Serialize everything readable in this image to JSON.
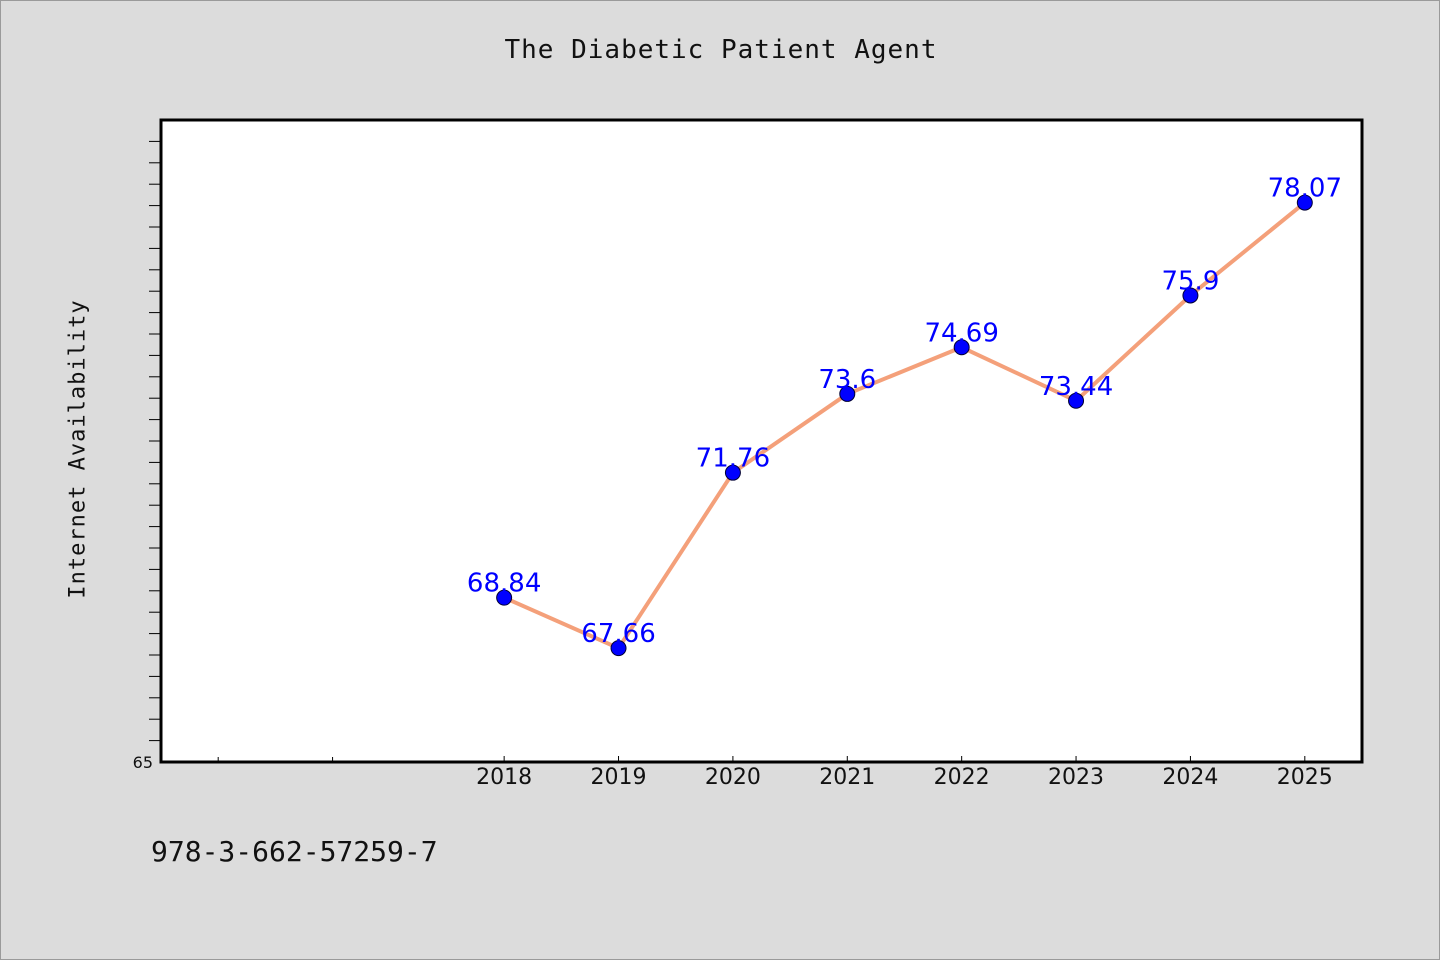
{
  "chart_data": {
    "type": "line",
    "title": "The Diabetic Patient Agent",
    "ylabel": "Internet Availability",
    "xlabel": "",
    "x": [
      "2018",
      "2019",
      "2020",
      "2021",
      "2022",
      "2023",
      "2024",
      "2025"
    ],
    "series": [
      {
        "values": [
          68.84,
          67.66,
          71.76,
          73.6,
          74.69,
          73.44,
          75.9,
          78.07
        ],
        "labels": [
          "68.84",
          "67.66",
          "71.76",
          "73.6",
          "74.69",
          "73.44",
          "75.9",
          "78.07"
        ],
        "line_color": "#f4a07a",
        "marker_color": "#0000ff"
      }
    ],
    "x_domain": [
      "2015",
      "2025.5"
    ],
    "ylim": [
      65,
      80
    ],
    "y_tick_labels": [
      "65"
    ],
    "grid": false,
    "legend": "none"
  },
  "footer": {
    "identifier": "978-3-662-57259-7"
  },
  "colors": {
    "background": "#dcdcdc",
    "plot_background": "#ffffff",
    "data_label": "#0000ff"
  }
}
